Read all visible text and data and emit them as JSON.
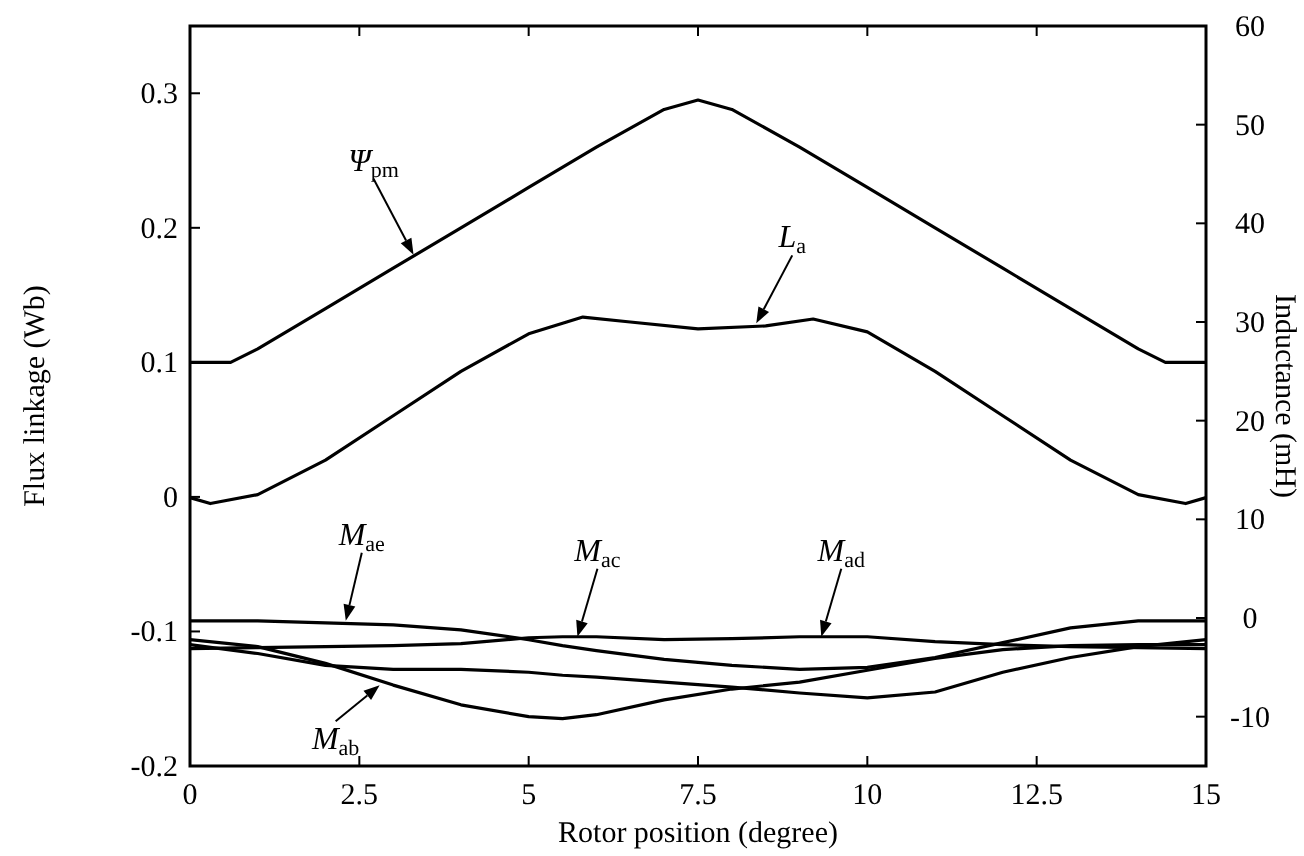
{
  "chart_data": {
    "type": "line",
    "xlabel": "Rotor position (degree)",
    "ylabel": "Flux linkage (Wb)",
    "y2label": "Inductance (mH)",
    "xlim": [
      0,
      15
    ],
    "xticks": [
      0,
      2.5,
      5,
      7.5,
      10,
      12.5,
      15
    ],
    "ylim": [
      -0.2,
      0.35
    ],
    "yticks": [
      -0.2,
      -0.1,
      0,
      0.1,
      0.2,
      0.3
    ],
    "y2lim": [
      -15,
      60
    ],
    "y2ticks": [
      -10,
      0,
      10,
      20,
      30,
      40,
      50,
      60
    ],
    "grid": false,
    "line_style": "solid",
    "series": [
      {
        "color": "#000000",
        "x": [
          0,
          0.6,
          1,
          2,
          3,
          4,
          5,
          6,
          7,
          7.5,
          8,
          9,
          10,
          11,
          12,
          13,
          14,
          14.4,
          15
        ],
        "values": [
          0.1,
          0.1,
          0.11,
          0.14,
          0.17,
          0.2,
          0.23,
          0.26,
          0.288,
          0.295,
          0.288,
          0.26,
          0.23,
          0.2,
          0.17,
          0.14,
          0.11,
          0.1,
          0.1
        ]
      },
      {
        "color": "#000000",
        "axis": "y2",
        "x": [
          0,
          0.3,
          1,
          2,
          3,
          4,
          5,
          5.8,
          6.5,
          7.5,
          8.5,
          9.2,
          10,
          11,
          12,
          13,
          14,
          14.7,
          15
        ],
        "values": [
          12.2,
          11.6,
          12.5,
          16,
          20.5,
          25,
          28.8,
          30.5,
          30,
          29.3,
          29.6,
          30.3,
          29,
          25,
          20.5,
          16,
          12.5,
          11.6,
          12.2
        ]
      },
      {
        "color": "#000000",
        "axis": "y2",
        "x": [
          0,
          1,
          2,
          3,
          4,
          5,
          5.5,
          6,
          7,
          8,
          9,
          10,
          11,
          12,
          13,
          14,
          15
        ],
        "values": [
          -2.2,
          -2.9,
          -4.6,
          -6.8,
          -8.8,
          -10,
          -10.2,
          -9.8,
          -8.3,
          -7.2,
          -6.5,
          -5.3,
          -4.1,
          -3.2,
          -2.8,
          -2.7,
          -2.7
        ]
      },
      {
        "color": "#000000",
        "axis": "y2",
        "x": [
          0,
          1,
          2,
          3,
          4,
          5,
          5.5,
          6,
          7,
          8,
          9,
          10,
          11,
          12,
          13,
          14,
          15
        ],
        "values": [
          -0.3,
          -0.3,
          -0.5,
          -0.7,
          -1.2,
          -2.2,
          -2.8,
          -3.3,
          -4.2,
          -4.8,
          -5.2,
          -5,
          -4,
          -2.5,
          -1,
          -0.3,
          -0.3
        ]
      },
      {
        "color": "#000000",
        "axis": "y2",
        "x": [
          0,
          1,
          2,
          3,
          4,
          5,
          5.5,
          6,
          7,
          8,
          9,
          10,
          11,
          12,
          13,
          14,
          15
        ],
        "values": [
          -3.1,
          -3,
          -2.9,
          -2.8,
          -2.6,
          -2,
          -1.9,
          -1.9,
          -2.2,
          -2.1,
          -1.9,
          -1.9,
          -2.4,
          -2.7,
          -2.9,
          -3,
          -3.1
        ]
      },
      {
        "color": "#000000",
        "axis": "y2",
        "x": [
          0,
          1,
          2,
          3,
          4,
          5,
          5.5,
          6,
          7,
          8,
          9,
          10,
          11,
          12,
          13,
          14,
          15
        ],
        "values": [
          -2.7,
          -3.6,
          -4.8,
          -5.2,
          -5.2,
          -5.5,
          -5.8,
          -6,
          -6.5,
          -7,
          -7.6,
          -8.1,
          -7.5,
          -5.5,
          -4,
          -2.9,
          -2.2
        ]
      }
    ],
    "annotations": [
      {
        "text": "Ψ$_{pm}$",
        "x": 3.3,
        "y": 0.18
      },
      {
        "text": "L$_{a}$",
        "x": 8.36,
        "y": 0.129
      },
      {
        "text": "M$_{ae}$",
        "x": 2.3,
        "y": -0.092
      },
      {
        "text": "M$_{ac}$",
        "x": 5.72,
        "y": -0.104
      },
      {
        "text": "M$_{ad}$",
        "x": 9.32,
        "y": -0.104
      },
      {
        "text": "M$_{ab}$",
        "x": 2.8,
        "y": -0.14
      }
    ]
  }
}
